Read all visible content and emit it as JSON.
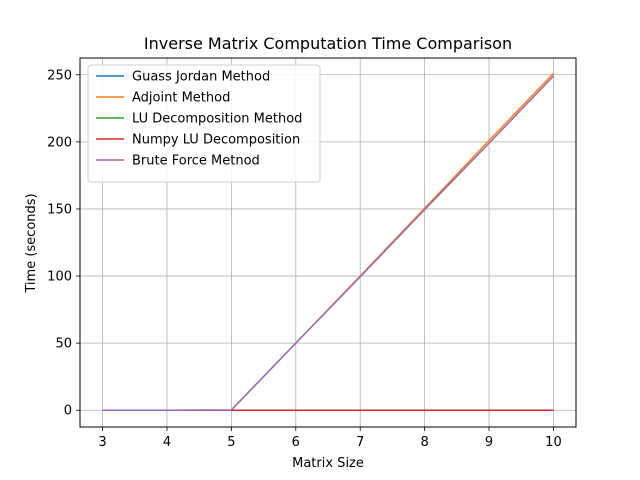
{
  "chart_data": {
    "type": "line",
    "title": "Inverse Matrix Computation Time Comparison",
    "xlabel": "Matrix Size",
    "ylabel": "Time (seconds)",
    "x": [
      3,
      4,
      5,
      6,
      7,
      8,
      9,
      10
    ],
    "xlim": [
      2.65,
      10.35
    ],
    "ylim": [
      -12.5,
      262.5
    ],
    "xticks": [
      3,
      4,
      5,
      6,
      7,
      8,
      9,
      10
    ],
    "yticks": [
      0,
      50,
      100,
      150,
      200,
      250
    ],
    "grid": true,
    "legend_position": "upper-left",
    "series": [
      {
        "name": "Guass Jordan Method",
        "color": "#1f77b4",
        "values": [
          0,
          0,
          0,
          0,
          0,
          0,
          0,
          0
        ]
      },
      {
        "name": "Adjoint Method",
        "color": "#ff7f0e",
        "values": [
          0,
          0,
          0.2,
          50,
          100,
          150.5,
          201,
          251
        ]
      },
      {
        "name": "LU Decomposition Method",
        "color": "#2ca02c",
        "values": [
          0,
          0,
          0,
          0,
          0,
          0,
          0,
          0
        ]
      },
      {
        "name": "Numpy LU Decomposition",
        "color": "#d62728",
        "values": [
          0,
          0,
          0,
          0,
          0,
          0,
          0,
          0
        ]
      },
      {
        "name": "Brute Force Metnod",
        "color": "#9467bd",
        "values": [
          0,
          0,
          0.2,
          50,
          99.5,
          149.5,
          199,
          249
        ]
      }
    ]
  }
}
